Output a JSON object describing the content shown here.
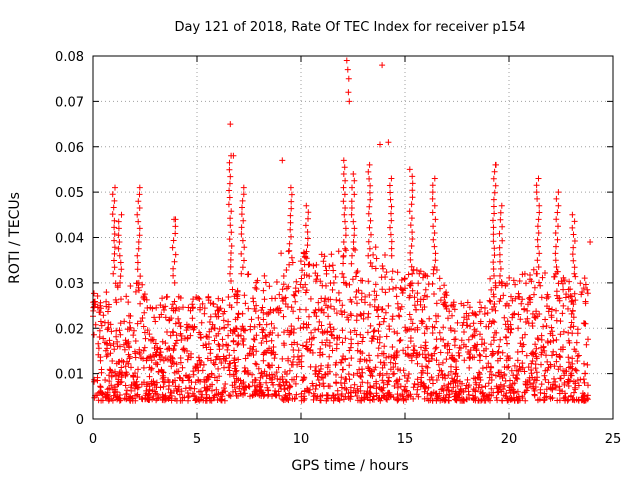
{
  "chart_data": {
    "type": "scatter",
    "title": "Day 121 of 2018, Rate Of TEC Index for receiver p154",
    "xlabel": "GPS time / hours",
    "ylabel": "ROTI / TECUs",
    "xlim": [
      0,
      25
    ],
    "ylim": [
      0,
      0.08
    ],
    "x_ticks": [
      0,
      5,
      10,
      15,
      20,
      25
    ],
    "x_tick_labels": [
      "0",
      "5",
      "10",
      "15",
      "20",
      "25"
    ],
    "y_ticks": [
      0,
      0.01,
      0.02,
      0.03,
      0.04,
      0.05,
      0.06,
      0.07,
      0.08
    ],
    "y_tick_labels": [
      "0",
      "0.01",
      "0.02",
      "0.03",
      "0.04",
      "0.05",
      "0.06",
      "0.07",
      "0.08"
    ],
    "grid": true,
    "marker": "+",
    "series": [
      {
        "name": "p154",
        "color": "#ff0000",
        "envelope": {
          "description": "dense band of ROTI values per time segment, in data units",
          "segments": [
            {
              "x0": 0.0,
              "x1": 1.0,
              "low": 0.004,
              "high": 0.028
            },
            {
              "x0": 1.0,
              "x1": 2.5,
              "low": 0.004,
              "high": 0.03
            },
            {
              "x0": 2.5,
              "x1": 5.0,
              "low": 0.004,
              "high": 0.027
            },
            {
              "x0": 5.0,
              "x1": 6.5,
              "low": 0.004,
              "high": 0.027
            },
            {
              "x0": 6.5,
              "x1": 9.0,
              "low": 0.005,
              "high": 0.032
            },
            {
              "x0": 9.0,
              "x1": 12.0,
              "low": 0.004,
              "high": 0.037
            },
            {
              "x0": 12.0,
              "x1": 14.5,
              "low": 0.004,
              "high": 0.038
            },
            {
              "x0": 14.5,
              "x1": 17.0,
              "low": 0.004,
              "high": 0.033
            },
            {
              "x0": 17.0,
              "x1": 19.0,
              "low": 0.004,
              "high": 0.026
            },
            {
              "x0": 19.0,
              "x1": 21.0,
              "low": 0.004,
              "high": 0.032
            },
            {
              "x0": 21.0,
              "x1": 23.8,
              "low": 0.004,
              "high": 0.033
            }
          ],
          "count": 2400
        },
        "spikes": [
          {
            "x": 1.0,
            "y_from": 0.032,
            "y_to": 0.051
          },
          {
            "x": 1.3,
            "y_from": 0.03,
            "y_to": 0.045
          },
          {
            "x": 2.2,
            "y_from": 0.03,
            "y_to": 0.051
          },
          {
            "x": 3.9,
            "y_from": 0.03,
            "y_to": 0.044
          },
          {
            "x": 6.6,
            "y_from": 0.032,
            "y_to": 0.058
          },
          {
            "x": 7.2,
            "y_from": 0.032,
            "y_to": 0.051
          },
          {
            "x": 9.5,
            "y_from": 0.034,
            "y_to": 0.051
          },
          {
            "x": 10.3,
            "y_from": 0.034,
            "y_to": 0.047
          },
          {
            "x": 12.1,
            "y_from": 0.036,
            "y_to": 0.057
          },
          {
            "x": 12.5,
            "y_from": 0.036,
            "y_to": 0.054
          },
          {
            "x": 13.3,
            "y_from": 0.036,
            "y_to": 0.056
          },
          {
            "x": 14.3,
            "y_from": 0.036,
            "y_to": 0.053
          },
          {
            "x": 15.3,
            "y_from": 0.032,
            "y_to": 0.055
          },
          {
            "x": 16.4,
            "y_from": 0.032,
            "y_to": 0.053
          },
          {
            "x": 19.3,
            "y_from": 0.03,
            "y_to": 0.056
          },
          {
            "x": 19.6,
            "y_from": 0.03,
            "y_to": 0.047
          },
          {
            "x": 21.4,
            "y_from": 0.032,
            "y_to": 0.053
          },
          {
            "x": 22.3,
            "y_from": 0.032,
            "y_to": 0.05
          },
          {
            "x": 23.1,
            "y_from": 0.032,
            "y_to": 0.045
          }
        ],
        "outliers": [
          [
            6.6,
            0.065
          ],
          [
            9.1,
            0.057
          ],
          [
            12.2,
            0.079
          ],
          [
            12.25,
            0.077
          ],
          [
            12.3,
            0.075
          ],
          [
            12.28,
            0.072
          ],
          [
            12.32,
            0.07
          ],
          [
            13.9,
            0.078
          ],
          [
            14.2,
            0.061
          ],
          [
            13.8,
            0.0605
          ],
          [
            3.9,
            0.044
          ],
          [
            23.9,
            0.039
          ],
          [
            6.75,
            0.058
          ],
          [
            19.35,
            0.056
          ]
        ]
      }
    ]
  }
}
